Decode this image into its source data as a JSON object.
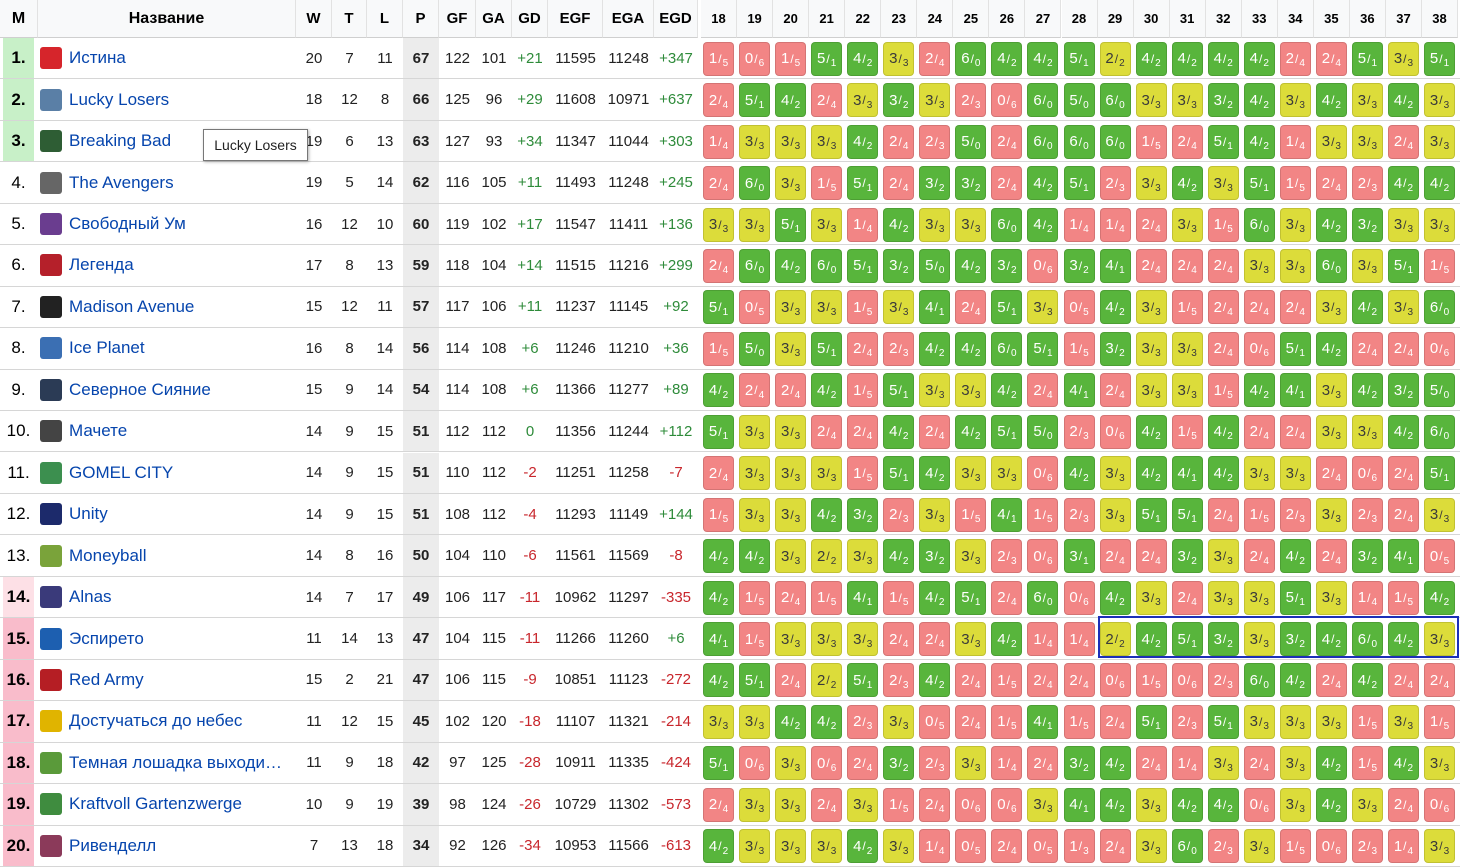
{
  "headers": {
    "rank": "М",
    "name": "Название",
    "stats": [
      "W",
      "T",
      "L",
      "P",
      "GF",
      "GA",
      "GD",
      "EGF",
      "EGA",
      "EGD"
    ],
    "rounds": [
      "18",
      "19",
      "20",
      "21",
      "22",
      "23",
      "24",
      "25",
      "26",
      "27",
      "28",
      "29",
      "30",
      "31",
      "32",
      "33",
      "34",
      "35",
      "36",
      "37",
      "38"
    ]
  },
  "tooltip": "Lucky Losers",
  "colors": {
    "win": "#58b53c",
    "draw": "#dcdc3a",
    "loss": "#f28585",
    "highlight": "#1c2fb8"
  },
  "teams": [
    {
      "rank": "1.",
      "name": "Истина",
      "logo": "truth-logo",
      "zone": "#c8f0c8",
      "W": "20",
      "T": "7",
      "L": "11",
      "P": "67",
      "GF": "122",
      "GA": "101",
      "GD": "+21",
      "EGF": "11595",
      "EGA": "11248",
      "EGD": "+347",
      "results": [
        "1/5",
        "0/6",
        "1/5",
        "5/1",
        "4/2",
        "3/3",
        "2/4",
        "6/0",
        "4/2",
        "4/2",
        "5/1",
        "2/2",
        "4/2",
        "4/2",
        "4/2",
        "4/2",
        "2/4",
        "2/4",
        "5/1",
        "3/3",
        "5/1"
      ]
    },
    {
      "rank": "2.",
      "name": "Lucky Losers",
      "logo": "lucky-losers-logo",
      "zone": "#c8f0c8",
      "W": "18",
      "T": "12",
      "L": "8",
      "P": "66",
      "GF": "125",
      "GA": "96",
      "GD": "+29",
      "EGF": "11608",
      "EGA": "10971",
      "EGD": "+637",
      "results": [
        "2/4",
        "5/1",
        "4/2",
        "2/4",
        "3/3",
        "3/2",
        "3/3",
        "2/3",
        "0/6",
        "6/0",
        "5/0",
        "6/0",
        "3/3",
        "3/3",
        "3/2",
        "4/2",
        "3/3",
        "4/2",
        "3/3",
        "4/2",
        "3/3"
      ]
    },
    {
      "rank": "3.",
      "name": "Breaking Bad",
      "logo": "breaking-bad-logo",
      "zone": "#c8f0c8",
      "W": "19",
      "T": "6",
      "L": "13",
      "P": "63",
      "GF": "127",
      "GA": "93",
      "GD": "+34",
      "EGF": "11347",
      "EGA": "11044",
      "EGD": "+303",
      "results": [
        "1/4",
        "3/3",
        "3/3",
        "3/3",
        "4/2",
        "2/4",
        "2/3",
        "5/0",
        "2/4",
        "6/0",
        "6/0",
        "6/0",
        "1/5",
        "2/4",
        "5/1",
        "4/2",
        "1/4",
        "3/3",
        "3/3",
        "2/4",
        "3/3"
      ]
    },
    {
      "rank": "4.",
      "name": "The Avengers",
      "logo": "avengers-logo",
      "zone": "#ffffff",
      "W": "19",
      "T": "5",
      "L": "14",
      "P": "62",
      "GF": "116",
      "GA": "105",
      "GD": "+11",
      "EGF": "11493",
      "EGA": "11248",
      "EGD": "+245",
      "results": [
        "2/4",
        "6/0",
        "3/3",
        "1/5",
        "5/1",
        "2/4",
        "3/2",
        "3/2",
        "2/4",
        "4/2",
        "5/1",
        "2/3",
        "3/3",
        "4/2",
        "3/3",
        "5/1",
        "1/5",
        "2/4",
        "2/3",
        "4/2",
        "4/2"
      ]
    },
    {
      "rank": "5.",
      "name": "Свободный Ум",
      "logo": "free-mind-logo",
      "zone": "#ffffff",
      "W": "16",
      "T": "12",
      "L": "10",
      "P": "60",
      "GF": "119",
      "GA": "102",
      "GD": "+17",
      "EGF": "11547",
      "EGA": "11411",
      "EGD": "+136",
      "results": [
        "3/3",
        "3/3",
        "5/1",
        "3/3",
        "1/4",
        "4/2",
        "3/3",
        "3/3",
        "6/0",
        "4/2",
        "1/4",
        "1/4",
        "2/4",
        "3/3",
        "1/5",
        "6/0",
        "3/3",
        "4/2",
        "3/2",
        "3/3",
        "3/3"
      ]
    },
    {
      "rank": "6.",
      "name": "Легенда",
      "logo": "legend-logo",
      "zone": "#ffffff",
      "W": "17",
      "T": "8",
      "L": "13",
      "P": "59",
      "GF": "118",
      "GA": "104",
      "GD": "+14",
      "EGF": "11515",
      "EGA": "11216",
      "EGD": "+299",
      "results": [
        "2/4",
        "6/0",
        "4/2",
        "6/0",
        "5/1",
        "3/2",
        "5/0",
        "4/2",
        "3/2",
        "0/6",
        "3/2",
        "4/1",
        "2/4",
        "2/4",
        "2/4",
        "3/3",
        "3/3",
        "6/0",
        "3/3",
        "5/1",
        "1/5"
      ]
    },
    {
      "rank": "7.",
      "name": "Madison Avenue",
      "logo": "madison-avenue-logo",
      "zone": "#ffffff",
      "W": "15",
      "T": "12",
      "L": "11",
      "P": "57",
      "GF": "117",
      "GA": "106",
      "GD": "+11",
      "EGF": "11237",
      "EGA": "11145",
      "EGD": "+92",
      "results": [
        "5/1",
        "0/5",
        "3/3",
        "3/3",
        "1/5",
        "3/3",
        "4/1",
        "2/4",
        "5/1",
        "3/3",
        "0/5",
        "4/2",
        "3/3",
        "1/5",
        "2/4",
        "2/4",
        "2/4",
        "3/3",
        "4/2",
        "3/3",
        "6/0"
      ]
    },
    {
      "rank": "8.",
      "name": "Ice Planet",
      "logo": "ice-planet-logo",
      "zone": "#ffffff",
      "W": "16",
      "T": "8",
      "L": "14",
      "P": "56",
      "GF": "114",
      "GA": "108",
      "GD": "+6",
      "EGF": "11246",
      "EGA": "11210",
      "EGD": "+36",
      "results": [
        "1/5",
        "5/0",
        "3/3",
        "5/1",
        "2/4",
        "2/3",
        "4/2",
        "4/2",
        "6/0",
        "5/1",
        "1/5",
        "3/2",
        "3/3",
        "3/3",
        "2/4",
        "0/6",
        "5/1",
        "4/2",
        "2/4",
        "2/4",
        "0/6"
      ]
    },
    {
      "rank": "9.",
      "name": "Северное Сияние",
      "logo": "northern-lights-logo",
      "zone": "#ffffff",
      "W": "15",
      "T": "9",
      "L": "14",
      "P": "54",
      "GF": "114",
      "GA": "108",
      "GD": "+6",
      "EGF": "11366",
      "EGA": "11277",
      "EGD": "+89",
      "results": [
        "4/2",
        "2/4",
        "2/4",
        "4/2",
        "1/5",
        "5/1",
        "3/3",
        "3/3",
        "4/2",
        "2/4",
        "4/1",
        "2/4",
        "3/3",
        "3/3",
        "1/5",
        "4/2",
        "4/1",
        "3/3",
        "4/2",
        "3/2",
        "5/0"
      ]
    },
    {
      "rank": "10.",
      "name": "Мачете",
      "logo": "machete-logo",
      "zone": "#ffffff",
      "W": "14",
      "T": "9",
      "L": "15",
      "P": "51",
      "GF": "112",
      "GA": "112",
      "GD": "0",
      "EGF": "11356",
      "EGA": "11244",
      "EGD": "+112",
      "results": [
        "5/1",
        "3/3",
        "3/3",
        "2/4",
        "2/4",
        "4/2",
        "2/4",
        "4/2",
        "5/1",
        "5/0",
        "2/3",
        "0/6",
        "4/2",
        "1/5",
        "4/2",
        "2/4",
        "2/4",
        "3/3",
        "3/3",
        "4/2",
        "6/0"
      ]
    },
    {
      "rank": "11.",
      "name": "GOMEL CITY",
      "logo": "gomel-city-logo",
      "zone": "#ffffff",
      "W": "14",
      "T": "9",
      "L": "15",
      "P": "51",
      "GF": "110",
      "GA": "112",
      "GD": "-2",
      "EGF": "11251",
      "EGA": "11258",
      "EGD": "-7",
      "results": [
        "2/4",
        "3/3",
        "3/3",
        "3/3",
        "1/5",
        "5/1",
        "4/2",
        "3/3",
        "3/3",
        "0/6",
        "4/2",
        "3/3",
        "4/2",
        "4/1",
        "4/2",
        "3/3",
        "3/3",
        "2/4",
        "0/6",
        "2/4",
        "5/1"
      ]
    },
    {
      "rank": "12.",
      "name": "Unity",
      "logo": "unity-logo",
      "zone": "#ffffff",
      "W": "14",
      "T": "9",
      "L": "15",
      "P": "51",
      "GF": "108",
      "GA": "112",
      "GD": "-4",
      "EGF": "11293",
      "EGA": "11149",
      "EGD": "+144",
      "results": [
        "1/5",
        "3/3",
        "3/3",
        "4/2",
        "3/2",
        "2/3",
        "3/3",
        "1/5",
        "4/1",
        "1/5",
        "2/3",
        "3/3",
        "5/1",
        "5/1",
        "2/4",
        "1/5",
        "2/3",
        "3/3",
        "2/3",
        "2/4",
        "3/3"
      ]
    },
    {
      "rank": "13.",
      "name": "Moneyball",
      "logo": "moneyball-logo",
      "zone": "#ffffff",
      "W": "14",
      "T": "8",
      "L": "16",
      "P": "50",
      "GF": "104",
      "GA": "110",
      "GD": "-6",
      "EGF": "11561",
      "EGA": "11569",
      "EGD": "-8",
      "results": [
        "4/2",
        "4/2",
        "3/3",
        "2/2",
        "3/3",
        "4/2",
        "3/2",
        "3/3",
        "2/3",
        "0/6",
        "3/1",
        "2/4",
        "2/4",
        "3/2",
        "3/3",
        "2/4",
        "4/2",
        "2/4",
        "3/2",
        "4/1",
        "0/5"
      ]
    },
    {
      "rank": "14.",
      "name": "Alnas",
      "logo": "alnas-logo",
      "zone": "#fde0e6",
      "W": "14",
      "T": "7",
      "L": "17",
      "P": "49",
      "GF": "106",
      "GA": "117",
      "GD": "-11",
      "EGF": "10962",
      "EGA": "11297",
      "EGD": "-335",
      "results": [
        "4/2",
        "1/5",
        "2/4",
        "1/5",
        "4/1",
        "1/5",
        "4/2",
        "5/1",
        "2/4",
        "6/0",
        "0/6",
        "4/2",
        "3/3",
        "2/4",
        "3/3",
        "3/3",
        "5/1",
        "3/3",
        "1/4",
        "1/5",
        "4/2"
      ]
    },
    {
      "rank": "15.",
      "name": "Эспирето",
      "logo": "espireto-logo",
      "zone": "#f9bccb",
      "W": "11",
      "T": "14",
      "L": "13",
      "P": "47",
      "GF": "104",
      "GA": "115",
      "GD": "-11",
      "EGF": "11266",
      "EGA": "11260",
      "EGD": "+6",
      "results": [
        "4/1",
        "1/5",
        "3/3",
        "3/3",
        "3/3",
        "2/4",
        "2/4",
        "3/3",
        "4/2",
        "1/4",
        "1/4",
        "2/2",
        "4/2",
        "5/1",
        "3/2",
        "3/3",
        "3/2",
        "4/2",
        "6/0",
        "4/2",
        "3/3"
      ]
    },
    {
      "rank": "16.",
      "name": "Red Army",
      "logo": "red-army-logo",
      "zone": "#f9bccb",
      "W": "15",
      "T": "2",
      "L": "21",
      "P": "47",
      "GF": "106",
      "GA": "115",
      "GD": "-9",
      "EGF": "10851",
      "EGA": "11123",
      "EGD": "-272",
      "results": [
        "4/2",
        "5/1",
        "2/4",
        "2/2",
        "5/1",
        "2/3",
        "4/2",
        "2/4",
        "1/5",
        "2/4",
        "2/4",
        "0/6",
        "1/5",
        "0/6",
        "2/3",
        "6/0",
        "4/2",
        "2/4",
        "4/2",
        "2/4",
        "2/4"
      ]
    },
    {
      "rank": "17.",
      "name": "Достучаться до небес",
      "logo": "knocking-on-heaven-logo",
      "zone": "#f9bccb",
      "W": "11",
      "T": "12",
      "L": "15",
      "P": "45",
      "GF": "102",
      "GA": "120",
      "GD": "-18",
      "EGF": "11107",
      "EGA": "11321",
      "EGD": "-214",
      "results": [
        "3/3",
        "3/3",
        "4/2",
        "4/2",
        "2/3",
        "3/3",
        "0/5",
        "2/4",
        "1/5",
        "4/1",
        "1/5",
        "2/4",
        "5/1",
        "2/3",
        "5/1",
        "3/3",
        "3/3",
        "3/3",
        "1/5",
        "3/3",
        "1/5"
      ]
    },
    {
      "rank": "18.",
      "name": "Темная лошадка выходи…",
      "logo": "dark-horse-logo",
      "zone": "#f9bccb",
      "W": "11",
      "T": "9",
      "L": "18",
      "P": "42",
      "GF": "97",
      "GA": "125",
      "GD": "-28",
      "EGF": "10911",
      "EGA": "11335",
      "EGD": "-424",
      "results": [
        "5/1",
        "0/6",
        "3/3",
        "0/6",
        "2/4",
        "3/2",
        "2/3",
        "3/3",
        "1/4",
        "2/4",
        "3/2",
        "4/2",
        "2/4",
        "1/4",
        "3/3",
        "2/4",
        "3/3",
        "4/2",
        "1/5",
        "4/2",
        "3/3"
      ]
    },
    {
      "rank": "19.",
      "name": "Kraftvoll Gartenzwerge",
      "logo": "gartenzwerge-logo",
      "zone": "#f9bccb",
      "W": "10",
      "T": "9",
      "L": "19",
      "P": "39",
      "GF": "98",
      "GA": "124",
      "GD": "-26",
      "EGF": "10729",
      "EGA": "11302",
      "EGD": "-573",
      "results": [
        "2/4",
        "3/3",
        "3/3",
        "2/4",
        "3/3",
        "1/5",
        "2/4",
        "0/6",
        "0/6",
        "3/3",
        "4/1",
        "4/2",
        "3/3",
        "4/2",
        "4/2",
        "0/6",
        "3/3",
        "4/2",
        "3/3",
        "2/4",
        "0/6"
      ]
    },
    {
      "rank": "20.",
      "name": "Ривенделл",
      "logo": "rivendell-logo",
      "zone": "#f9bccb",
      "W": "7",
      "T": "13",
      "L": "18",
      "P": "34",
      "GF": "92",
      "GA": "126",
      "GD": "-34",
      "EGF": "10953",
      "EGA": "11566",
      "EGD": "-613",
      "results": [
        "4/2",
        "3/3",
        "3/3",
        "3/3",
        "4/2",
        "3/3",
        "1/4",
        "0/5",
        "2/4",
        "0/5",
        "1/3",
        "2/4",
        "3/3",
        "6/0",
        "2/3",
        "3/3",
        "1/5",
        "0/6",
        "2/3",
        "1/4",
        "3/3"
      ]
    }
  ]
}
